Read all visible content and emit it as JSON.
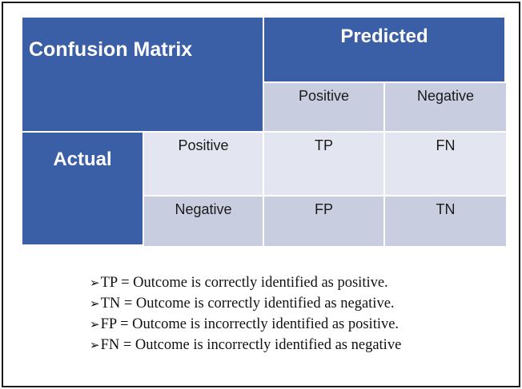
{
  "matrix": {
    "title": "Confusion Matrix",
    "predicted_label": "Predicted",
    "actual_label": "Actual",
    "columns": [
      "Positive",
      "Negative"
    ],
    "rows": [
      {
        "label": "Positive",
        "cells": [
          "TP",
          "FN"
        ]
      },
      {
        "label": "Negative",
        "cells": [
          "FP",
          "TN"
        ]
      }
    ]
  },
  "definitions": {
    "bullet": "➢",
    "items": [
      "TP = Outcome is correctly identified as positive.",
      "TN = Outcome is correctly identified as negative.",
      "FP = Outcome is incorrectly identified as positive.",
      "FN = Outcome is incorrectly identified as negative"
    ]
  },
  "colors": {
    "header_blue": "#3a5fa6",
    "lavender": "#c8cde0",
    "pale": "#e3e6f0"
  }
}
